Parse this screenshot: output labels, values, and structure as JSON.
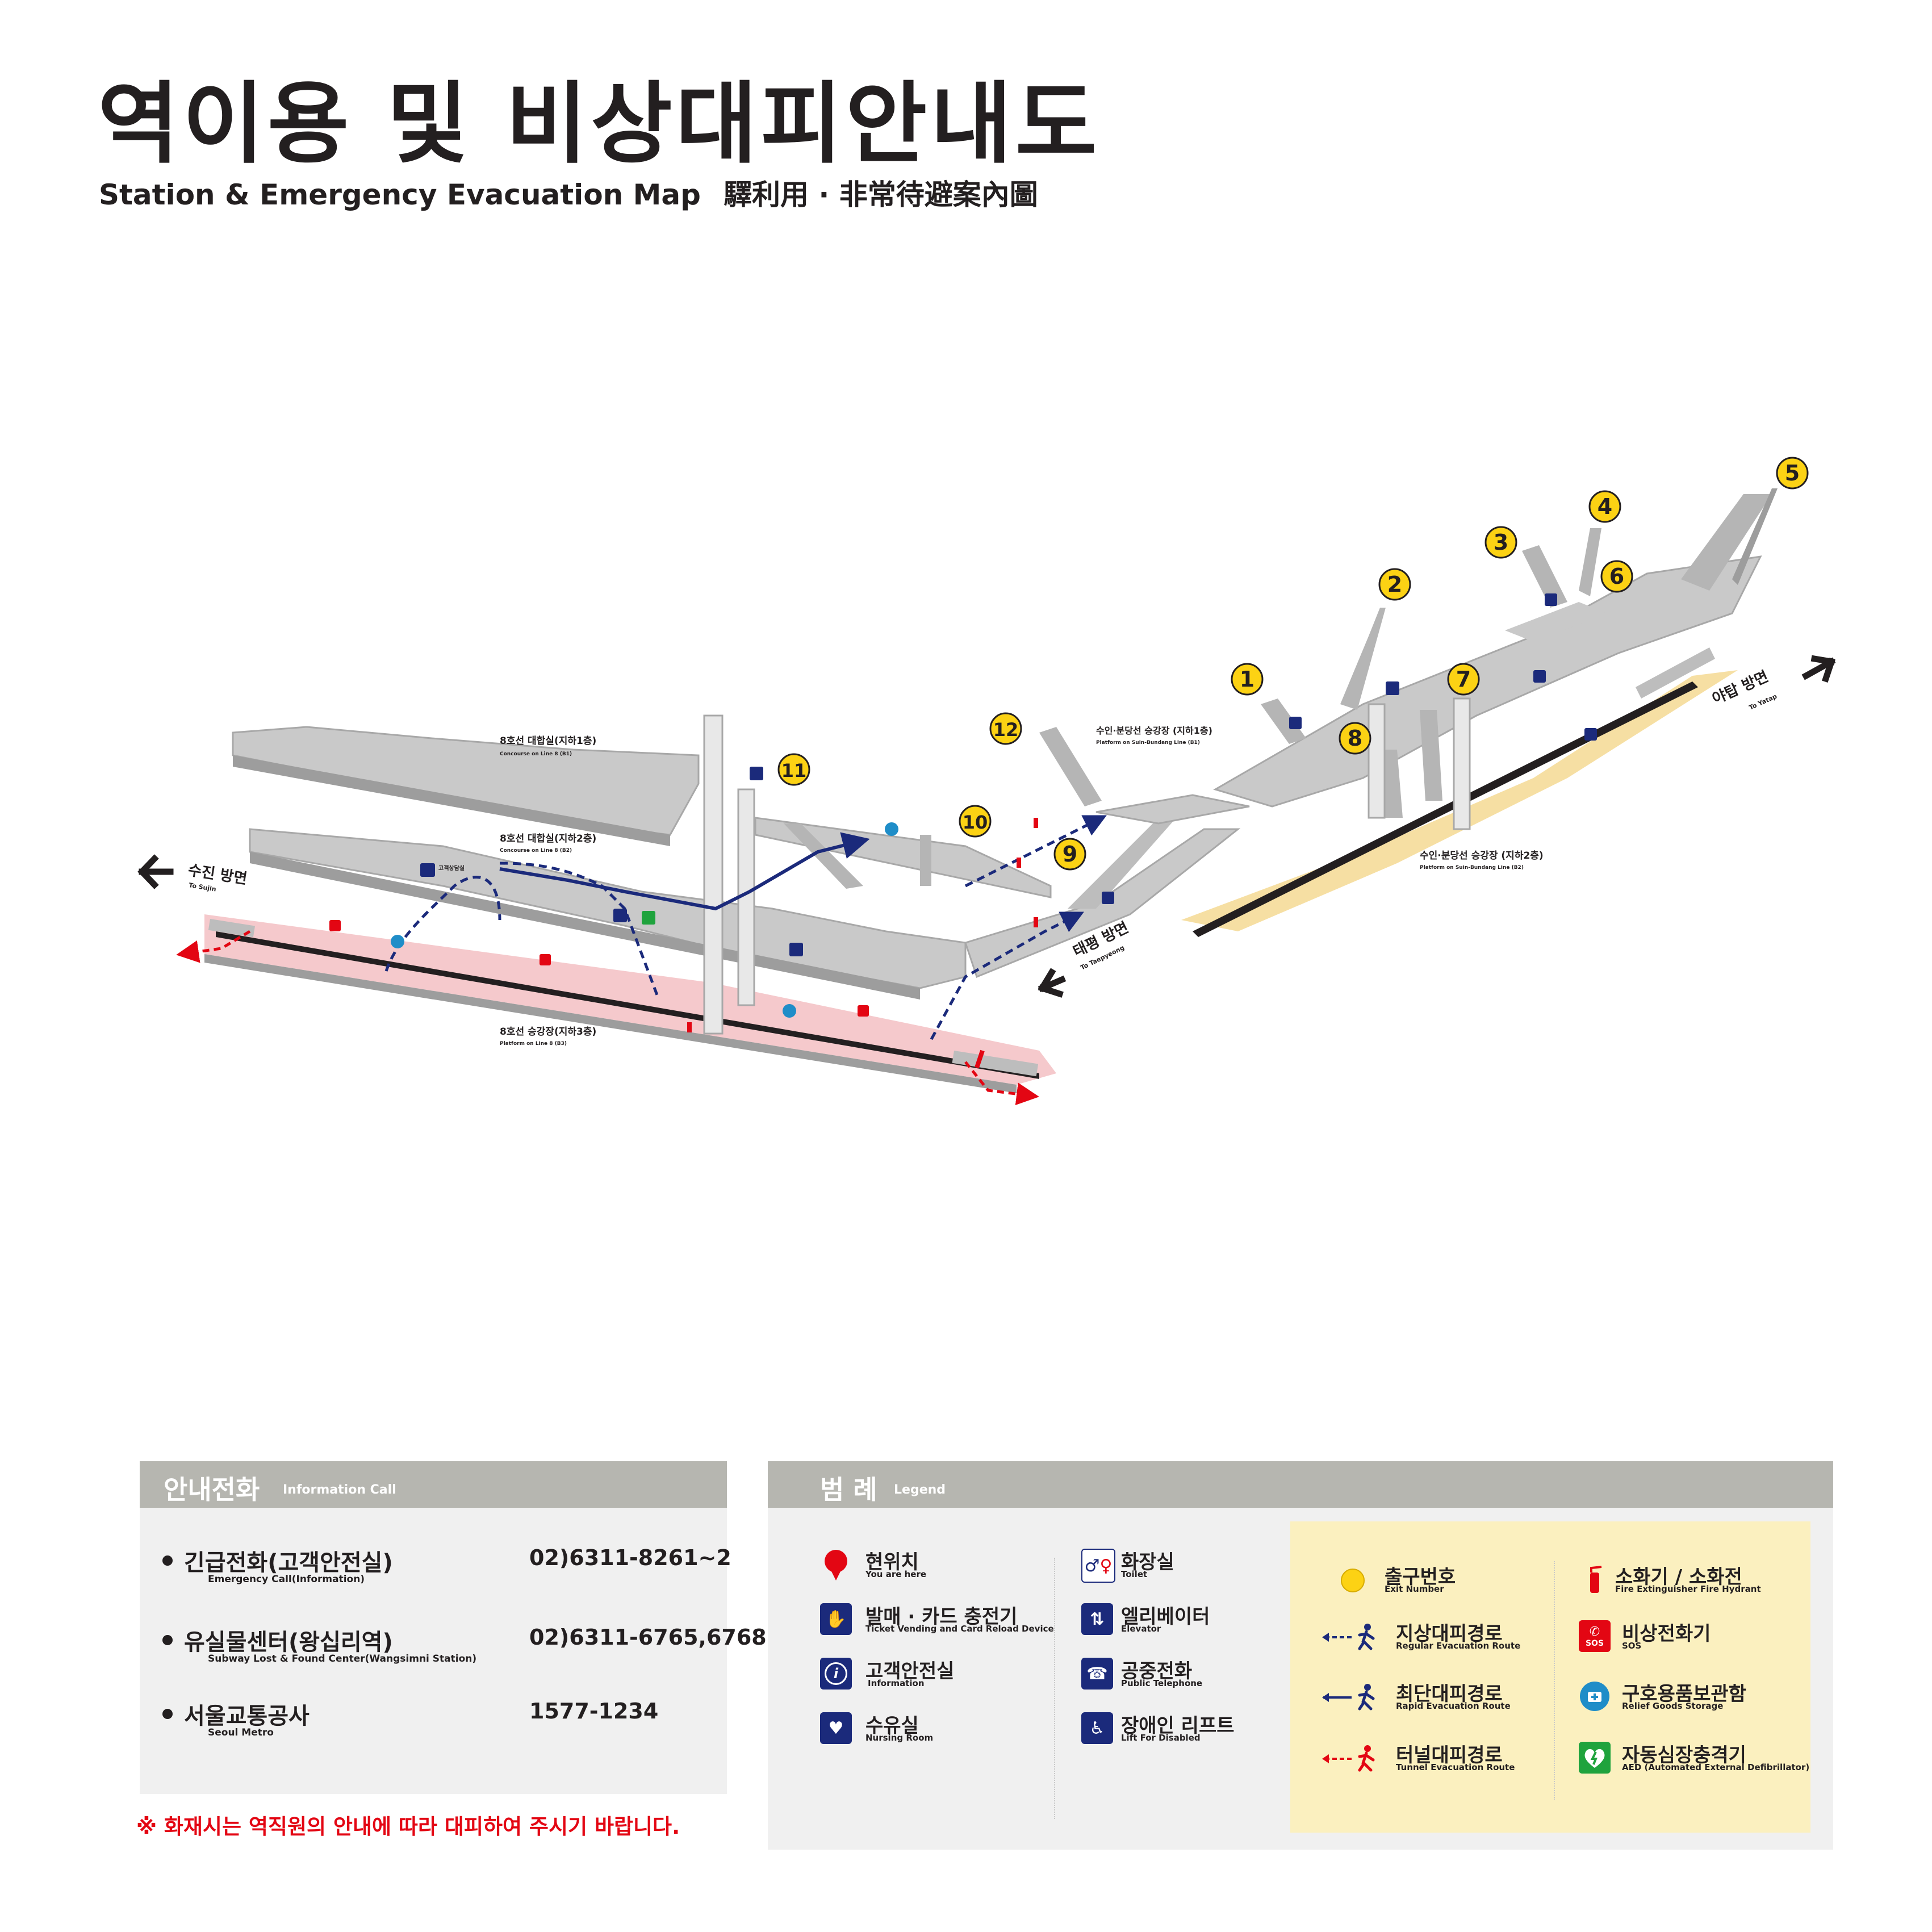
{
  "header": {
    "title": "역이용 및 비상대피안내도",
    "subtitle_en": "Station & Emergency Evacuation Map",
    "subtitle_hanja": "驛利用 · 非常待避案內圖"
  },
  "map": {
    "levels": [
      {
        "ko": "8호선 대합실(지하1층)",
        "en": "Concourse on Line 8 (B1)"
      },
      {
        "ko": "8호선 대합실(지하2층)",
        "en": "Concourse on Line 8 (B2)"
      },
      {
        "ko": "8호선 승강장(지하3층)",
        "en": "Platform on Line 8 (B3)"
      },
      {
        "ko": "수인·분당선 승강장 (지하1층)",
        "en": "Platform on Suin-Bundang Line (B1)"
      },
      {
        "ko": "수인·분당선 승강장 (지하2층)",
        "en": "Platform on Suin-Bundang Line (B2)"
      }
    ],
    "directions": [
      {
        "ko": "수진 방면",
        "en": "To Sujin"
      },
      {
        "ko": "태평 방면",
        "en": "To Taepyeong"
      },
      {
        "ko": "야탑 방면",
        "en": "To Yatap"
      }
    ],
    "customer_center_label": "고객상담실",
    "exits": [
      "1",
      "2",
      "3",
      "4",
      "5",
      "6",
      "7",
      "8",
      "9",
      "10",
      "11",
      "12"
    ]
  },
  "info_call": {
    "title_ko": "안내전화",
    "title_en": "Information Call",
    "rows": [
      {
        "name": "긴급전화(고객안전실)",
        "sub": "Emergency Call(Information)",
        "number": "02)6311-8261~2"
      },
      {
        "name": "유실물센터(왕십리역)",
        "sub": "Subway Lost & Found Center(Wangsimni Station)",
        "number": "02)6311-6765,6768"
      },
      {
        "name": "서울교통공사",
        "sub": "Seoul Metro",
        "number": "1577-1234"
      }
    ]
  },
  "notice": "※ 화재시는 역직원의 안내에 따라 대피하여 주시기 바랍니다.",
  "legend": {
    "title_ko": "범 례",
    "title_en": "Legend",
    "col1": [
      {
        "ko": "현위치",
        "en": "You are here",
        "icon": "you-are-here-pin"
      },
      {
        "ko": "발매 · 카드 충전기",
        "en": "Ticket Vending and Card Reload Device",
        "icon": "ticket-machine-icon"
      },
      {
        "ko": "고객안전실",
        "en": "Information",
        "icon": "information-icon"
      },
      {
        "ko": "수유실",
        "en": "Nursing Room",
        "icon": "nursing-room-icon"
      }
    ],
    "col2": [
      {
        "ko": "화장실",
        "en": "Toilet",
        "icon": "toilet-icon"
      },
      {
        "ko": "엘리베이터",
        "en": "Elevator",
        "icon": "elevator-icon"
      },
      {
        "ko": "공중전화",
        "en": "Public Telephone",
        "icon": "telephone-icon"
      },
      {
        "ko": "장애인 리프트",
        "en": "Lift For Disabled",
        "icon": "wheelchair-lift-icon"
      }
    ],
    "col3": [
      {
        "ko": "출구번호",
        "en": "Exit Number",
        "icon": "exit-number-dot"
      },
      {
        "ko": "지상대피경로",
        "en": "Regular Evacuation Route",
        "icon": "regular-route-arrow",
        "color": "#1b2a7b"
      },
      {
        "ko": "최단대피경로",
        "en": "Rapid Evacuation Route",
        "icon": "rapid-route-arrow",
        "color": "#1b2a7b"
      },
      {
        "ko": "터널대피경로",
        "en": "Tunnel Evacuation Route",
        "icon": "tunnel-route-arrow",
        "color": "#e30613"
      }
    ],
    "col4": [
      {
        "ko": "소화기 / 소화전",
        "en_a": "Fire Extinguisher",
        "en_b": "Fire Hydrant",
        "icon": "fire-extinguisher-icon"
      },
      {
        "ko": "비상전화기",
        "en": "SOS",
        "icon": "sos-phone-icon"
      },
      {
        "ko": "구호용품보관함",
        "en": "Relief Goods Storage",
        "icon": "relief-goods-icon"
      },
      {
        "ko": "자동심장충격기",
        "en": "AED (Automated External Defibrillator)",
        "icon": "aed-icon"
      }
    ]
  },
  "colors": {
    "navy": "#1b2a7b",
    "red": "#e30613",
    "exit_yellow": "#fcd214",
    "panel_header": "#b6b6b0",
    "panel_bg": "#f0f0f0",
    "legend_yellow_bg": "#fbf0bf"
  }
}
